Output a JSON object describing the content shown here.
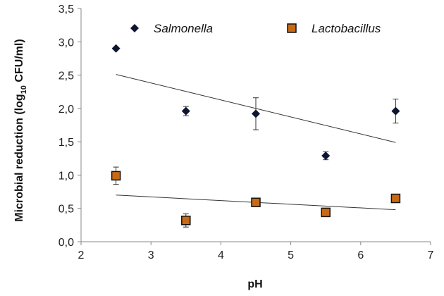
{
  "chart_data": {
    "type": "scatter",
    "xlabel": "pH",
    "ylabel_main": "Microbial reduction  (log",
    "ylabel_sub": "10",
    "ylabel_tail": " CFU/ml)",
    "xlim": [
      2,
      7
    ],
    "ylim": [
      0,
      3.5
    ],
    "xticks": [
      "2",
      "3",
      "4",
      "5",
      "6",
      "7"
    ],
    "yticks": [
      "0,0",
      "0,5",
      "1,0",
      "1,5",
      "2,0",
      "2,5",
      "3,0",
      "3,5"
    ],
    "grid": false,
    "legend_position": "top",
    "series": [
      {
        "name": "Salmonella",
        "marker": "diamond",
        "color": "#0d1533",
        "x": [
          2.5,
          3.5,
          4.5,
          5.5,
          6.5
        ],
        "y": [
          2.9,
          1.96,
          1.92,
          1.29,
          1.96
        ],
        "err": [
          0.0,
          0.07,
          0.24,
          0.06,
          0.18
        ],
        "trend": {
          "x": [
            2.5,
            6.5
          ],
          "y": [
            2.51,
            1.49
          ]
        }
      },
      {
        "name": "Lactobacillus",
        "marker": "square",
        "color": "#c86a14",
        "x": [
          2.5,
          3.5,
          4.5,
          5.5,
          6.5
        ],
        "y": [
          0.99,
          0.32,
          0.59,
          0.44,
          0.65
        ],
        "err": [
          0.13,
          0.1,
          0.0,
          0.0,
          0.0
        ],
        "trend": {
          "x": [
            2.5,
            6.5
          ],
          "y": [
            0.7,
            0.48
          ]
        }
      }
    ]
  }
}
